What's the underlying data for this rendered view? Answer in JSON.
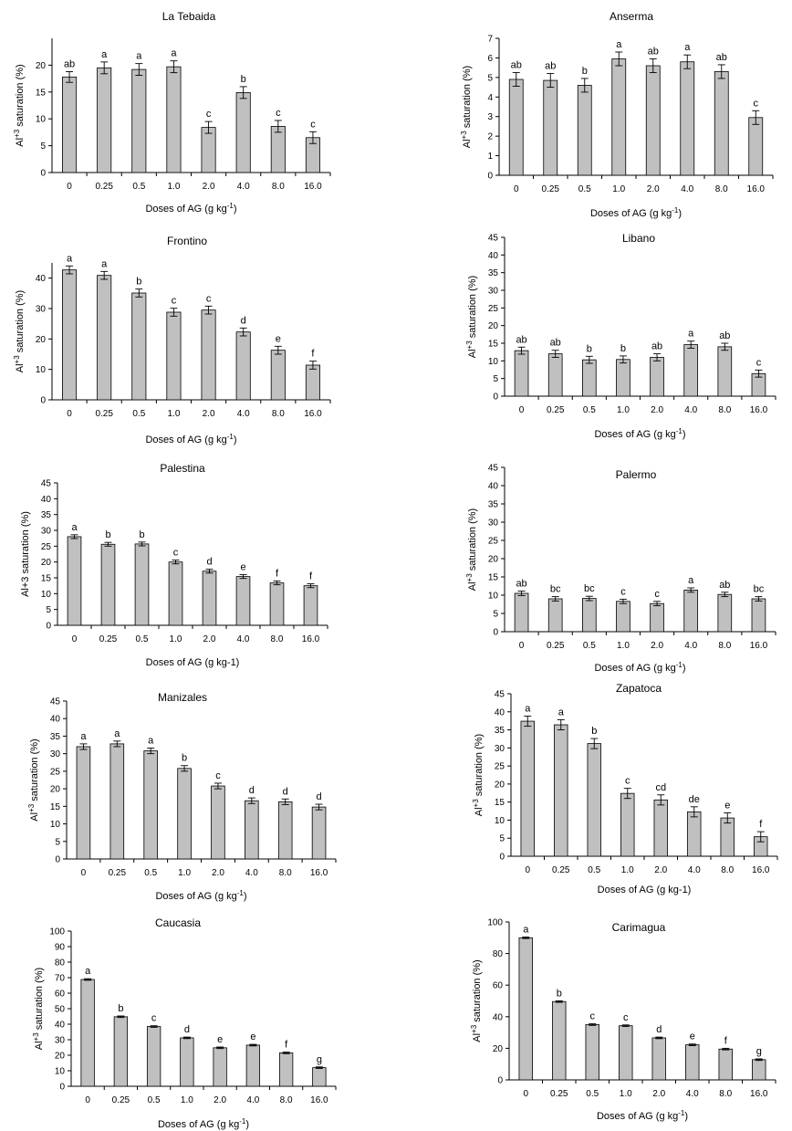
{
  "chart_data": [
    {
      "type": "bar",
      "title": "La Tebaida",
      "categories": [
        "0",
        "0.25",
        "0.5",
        "1.0",
        "2.0",
        "4.0",
        "8.0",
        "16.0"
      ],
      "values": [
        17.8,
        19.5,
        19.2,
        19.7,
        8.4,
        14.9,
        8.6,
        6.5
      ],
      "errors": [
        1.0,
        1.1,
        1.1,
        1.1,
        1.1,
        1.1,
        1.1,
        1.1
      ],
      "letters": [
        "ab",
        "a",
        "a",
        "a",
        "c",
        "b",
        "c",
        "c"
      ],
      "ylim": [
        0,
        25
      ],
      "yticks": [
        0,
        5,
        10,
        15,
        20
      ],
      "xlabel": "Doses of AG (g kg",
      "xlabel_sup": "-1",
      "xlabel_tail": ")",
      "ylabel": "Al",
      "ylabel_sup": "+3",
      "ylabel_tail": " saturation (%)"
    },
    {
      "type": "bar",
      "title": "Anserma",
      "categories": [
        "0",
        "0.25",
        "0.5",
        "1.0",
        "2.0",
        "4.0",
        "8.0",
        "16.0"
      ],
      "values": [
        4.9,
        4.85,
        4.6,
        5.95,
        5.6,
        5.8,
        5.3,
        2.95
      ],
      "errors": [
        0.35,
        0.35,
        0.35,
        0.35,
        0.35,
        0.35,
        0.35,
        0.35
      ],
      "letters": [
        "ab",
        "ab",
        "b",
        "a",
        "ab",
        "a",
        "ab",
        "c"
      ],
      "ylim": [
        0,
        7
      ],
      "yticks": [
        0,
        1,
        2,
        3,
        4,
        5,
        6,
        7
      ],
      "xlabel": "Doses of AG (g kg",
      "xlabel_sup": "-1",
      "xlabel_tail": ")",
      "ylabel": "Al",
      "ylabel_sup": "+3",
      "ylabel_tail": " saturation (%)"
    },
    {
      "type": "bar",
      "title": "Frontino",
      "categories": [
        "0",
        "0.25",
        "0.5",
        "1.0",
        "2.0",
        "4.0",
        "8.0",
        "16.0"
      ],
      "values": [
        42.7,
        40.9,
        35.1,
        28.8,
        29.5,
        22.3,
        16.3,
        11.4
      ],
      "errors": [
        1.3,
        1.3,
        1.3,
        1.3,
        1.3,
        1.3,
        1.3,
        1.3
      ],
      "letters": [
        "a",
        "a",
        "b",
        "c",
        "c",
        "d",
        "e",
        "f"
      ],
      "ylim": [
        0,
        45
      ],
      "yticks": [
        0,
        10,
        20,
        30,
        40
      ],
      "xlabel": "Doses of AG (g kg",
      "xlabel_sup": "-1",
      "xlabel_tail": ")",
      "ylabel": "Al",
      "ylabel_sup": "+3",
      "ylabel_tail": " saturation (%)"
    },
    {
      "type": "bar",
      "title": "Libano",
      "categories": [
        "0",
        "0.25",
        "0.5",
        "1.0",
        "2.0",
        "4.0",
        "8.0",
        "16.0"
      ],
      "values": [
        12.9,
        12.0,
        10.3,
        10.4,
        11.0,
        14.6,
        14.0,
        6.4
      ],
      "errors": [
        1.0,
        1.0,
        1.0,
        1.0,
        1.0,
        1.0,
        1.0,
        1.0
      ],
      "letters": [
        "ab",
        "ab",
        "b",
        "b",
        "ab",
        "a",
        "ab",
        "c"
      ],
      "ylim": [
        0,
        45
      ],
      "yticks": [
        0,
        5,
        10,
        15,
        20,
        25,
        30,
        35,
        40,
        45
      ],
      "xlabel": "Doses of AG (g kg",
      "xlabel_sup": "-1",
      "xlabel_tail": ")",
      "ylabel": "Al",
      "ylabel_sup": "+3",
      "ylabel_tail": " saturation (%)"
    },
    {
      "type": "bar",
      "title": "Palestina",
      "categories": [
        "0",
        "0.25",
        "0.5",
        "1.0",
        "2.0",
        "4.0",
        "8.0",
        "16.0"
      ],
      "values": [
        28.0,
        25.6,
        25.7,
        20.0,
        17.1,
        15.4,
        13.4,
        12.5
      ],
      "errors": [
        0.6,
        0.6,
        0.6,
        0.6,
        0.6,
        0.6,
        0.6,
        0.6
      ],
      "letters": [
        "a",
        "b",
        "b",
        "c",
        "d",
        "e",
        "f",
        "f"
      ],
      "ylim": [
        0,
        45
      ],
      "yticks": [
        0,
        5,
        10,
        15,
        20,
        25,
        30,
        35,
        40,
        45
      ],
      "xlabel": "Doses of AG (g kg-1)",
      "xlabel_sup": "",
      "xlabel_tail": "",
      "ylabel": "Al+3 saturation (%)",
      "ylabel_sup": "",
      "ylabel_tail": ""
    },
    {
      "type": "bar",
      "title": "Palermo",
      "categories": [
        "0",
        "0.25",
        "0.5",
        "1.0",
        "2.0",
        "4.0",
        "8.0",
        "16.0"
      ],
      "values": [
        10.5,
        9.0,
        9.1,
        8.3,
        7.7,
        11.4,
        10.2,
        9.0
      ],
      "errors": [
        0.6,
        0.6,
        0.6,
        0.6,
        0.6,
        0.6,
        0.6,
        0.6
      ],
      "letters": [
        "ab",
        "bc",
        "bc",
        "c",
        "c",
        "a",
        "ab",
        "bc"
      ],
      "ylim": [
        0,
        45
      ],
      "yticks": [
        0,
        5,
        10,
        15,
        20,
        25,
        30,
        35,
        40,
        45
      ],
      "xlabel": "Doses of AG (g kg",
      "xlabel_sup": "-1",
      "xlabel_tail": ")",
      "ylabel": "Al",
      "ylabel_sup": "+3",
      "ylabel_tail": " saturation (%)"
    },
    {
      "type": "bar",
      "title": "Manizales",
      "categories": [
        "0",
        "0.25",
        "0.5",
        "1.0",
        "2.0",
        "4.0",
        "8.0",
        "16.0"
      ],
      "values": [
        32.0,
        32.8,
        30.8,
        25.8,
        20.8,
        16.6,
        16.3,
        14.8
      ],
      "errors": [
        0.8,
        0.8,
        0.8,
        0.8,
        0.8,
        0.8,
        0.8,
        0.8
      ],
      "letters": [
        "a",
        "a",
        "a",
        "b",
        "c",
        "d",
        "d",
        "d"
      ],
      "ylim": [
        0,
        45
      ],
      "yticks": [
        0,
        5,
        10,
        15,
        20,
        25,
        30,
        35,
        40,
        45
      ],
      "xlabel": "Doses of AG (g kg",
      "xlabel_sup": "-1",
      "xlabel_tail": ")",
      "ylabel": "Al",
      "ylabel_sup": "+3",
      "ylabel_tail": " saturation (%)"
    },
    {
      "type": "bar",
      "title": "Zapatoca",
      "categories": [
        "0",
        "0.25",
        "0.5",
        "1.0",
        "2.0",
        "4.0",
        "8.0",
        "16.0"
      ],
      "values": [
        37.4,
        36.4,
        31.2,
        17.4,
        15.6,
        12.3,
        10.6,
        5.4
      ],
      "errors": [
        1.4,
        1.4,
        1.4,
        1.4,
        1.4,
        1.4,
        1.4,
        1.4
      ],
      "letters": [
        "a",
        "a",
        "b",
        "c",
        "cd",
        "de",
        "e",
        "f"
      ],
      "ylim": [
        0,
        45
      ],
      "yticks": [
        0,
        5,
        10,
        15,
        20,
        25,
        30,
        35,
        40,
        45
      ],
      "xlabel": "Doses of AG (g kg-1)",
      "xlabel_sup": "",
      "xlabel_tail": "",
      "ylabel": "Al",
      "ylabel_sup": "+3",
      "ylabel_tail": " saturation (%)"
    },
    {
      "type": "bar",
      "title": "Caucasia",
      "categories": [
        "0",
        "0.25",
        "0.5",
        "1.0",
        "2.0",
        "4.0",
        "8.0",
        "16.0"
      ],
      "values": [
        68.8,
        44.8,
        38.5,
        31.2,
        24.8,
        26.5,
        21.5,
        12.0
      ],
      "errors": [
        0.5,
        0.5,
        0.5,
        0.5,
        0.5,
        0.5,
        0.5,
        0.5
      ],
      "letters": [
        "a",
        "b",
        "c",
        "d",
        "e",
        "e",
        "f",
        "g"
      ],
      "ylim": [
        0,
        100
      ],
      "yticks": [
        0,
        10,
        20,
        30,
        40,
        50,
        60,
        70,
        80,
        90,
        100
      ],
      "xlabel": "Doses of AG (g kg",
      "xlabel_sup": "-1",
      "xlabel_tail": ")",
      "ylabel": "Al",
      "ylabel_sup": "+3",
      "ylabel_tail": " saturation (%)"
    },
    {
      "type": "bar",
      "title": "Carimagua",
      "categories": [
        "0",
        "0.25",
        "0.5",
        "1.0",
        "2.0",
        "4.0",
        "8.0",
        "16.0"
      ],
      "values": [
        90.0,
        49.6,
        35.0,
        34.3,
        26.6,
        22.2,
        19.5,
        12.8
      ],
      "errors": [
        0.5,
        0.5,
        0.5,
        0.5,
        0.5,
        0.5,
        0.5,
        0.5
      ],
      "letters": [
        "a",
        "b",
        "c",
        "c",
        "d",
        "e",
        "f",
        "g"
      ],
      "ylim": [
        0,
        100
      ],
      "yticks": [
        0,
        20,
        40,
        60,
        80,
        100
      ],
      "xlabel": "Doses of AG (g kg",
      "xlabel_sup": "-1",
      "xlabel_tail": ")",
      "ylabel": "Al",
      "ylabel_sup": "+3",
      "ylabel_tail": " saturation (%)"
    }
  ]
}
